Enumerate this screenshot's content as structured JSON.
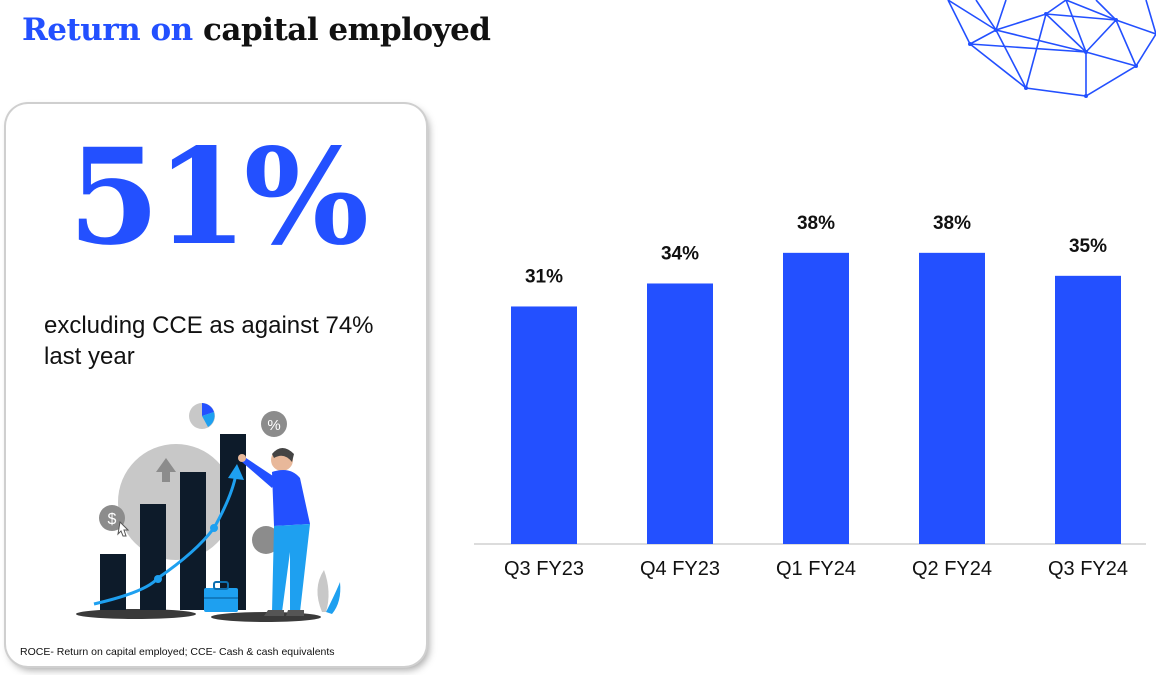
{
  "title": {
    "accent": "Return on",
    "rest": "capital employed"
  },
  "card": {
    "big_value": "51%",
    "caption": "excluding CCE as against 74% last year",
    "footnote": "ROCE- Return on capital employed; CCE- Cash & cash equivalents",
    "illustration_icons": [
      "pie-chart-icon",
      "percent-icon",
      "dollar-icon",
      "arrow-up-icon",
      "briefcase-icon",
      "person-icon"
    ]
  },
  "colors": {
    "accent": "#2350ff",
    "bar": "#2350ff",
    "dark_bar": "#0d1b2a",
    "light_blue": "#1ea0f0"
  },
  "chart_data": {
    "type": "bar",
    "categories": [
      "Q3 FY23",
      "Q4 FY23",
      "Q1 FY24",
      "Q2 FY24",
      "Q3 FY24"
    ],
    "values": [
      31,
      34,
      38,
      38,
      35
    ],
    "data_labels": [
      "31%",
      "34%",
      "38%",
      "38%",
      "35%"
    ],
    "title": "",
    "xlabel": "",
    "ylabel": "",
    "ylim": [
      0,
      40
    ],
    "grid": false,
    "legend": "none"
  }
}
